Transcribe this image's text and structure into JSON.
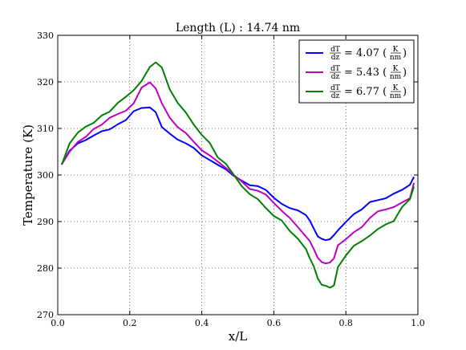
{
  "chart_data": {
    "type": "line",
    "title": "Length (L) : 14.74 nm",
    "xlabel": "x/L",
    "ylabel": "Temperature (K)",
    "xlim": [
      0.0,
      1.0
    ],
    "ylim": [
      270,
      330
    ],
    "xticks": [
      "0.0",
      "0.2",
      "0.4",
      "0.6",
      "0.8",
      "1.0"
    ],
    "yticks": [
      "270",
      "280",
      "290",
      "300",
      "310",
      "320",
      "330"
    ],
    "grid": true,
    "legend_position": "top-right",
    "x": [
      0.011,
      0.033,
      0.056,
      0.078,
      0.1,
      0.122,
      0.144,
      0.167,
      0.189,
      0.211,
      0.233,
      0.256,
      0.272,
      0.289,
      0.311,
      0.333,
      0.356,
      0.378,
      0.4,
      0.422,
      0.444,
      0.467,
      0.489,
      0.511,
      0.533,
      0.556,
      0.578,
      0.6,
      0.622,
      0.644,
      0.667,
      0.689,
      0.7,
      0.711,
      0.722,
      0.733,
      0.744,
      0.756,
      0.767,
      0.778,
      0.8,
      0.822,
      0.844,
      0.867,
      0.889,
      0.911,
      0.933,
      0.956,
      0.978,
      0.989
    ],
    "series": [
      {
        "name": "4.07",
        "color": "#0000ff",
        "values": [
          302.3,
          305.2,
          306.8,
          307.5,
          308.5,
          309.4,
          309.8,
          310.9,
          311.8,
          313.7,
          314.4,
          314.5,
          313.5,
          310.3,
          308.9,
          307.6,
          306.8,
          305.8,
          304.2,
          303.2,
          302.2,
          301.2,
          299.8,
          298.8,
          297.8,
          297.6,
          296.8,
          295.1,
          293.8,
          292.9,
          292.4,
          291.4,
          290.2,
          288.5,
          286.8,
          286.3,
          286.0,
          286.2,
          287.1,
          288.1,
          289.9,
          291.6,
          292.6,
          294.2,
          294.6,
          295.0,
          296.0,
          296.8,
          297.9,
          299.6
        ]
      },
      {
        "name": "5.43",
        "color": "#bf00bf",
        "values": [
          302.3,
          305.0,
          307.1,
          308.2,
          309.9,
          310.8,
          312.3,
          313.1,
          313.8,
          315.4,
          318.8,
          319.9,
          318.6,
          315.4,
          312.3,
          310.3,
          309.0,
          307.1,
          305.3,
          304.2,
          302.9,
          301.5,
          300.0,
          298.6,
          297.0,
          296.6,
          295.8,
          294.0,
          292.3,
          290.8,
          288.8,
          286.8,
          285.8,
          284.1,
          282.2,
          281.3,
          281.0,
          281.2,
          282.1,
          284.9,
          286.2,
          287.7,
          288.8,
          290.8,
          292.2,
          292.6,
          293.1,
          294.1,
          295.0,
          298.3
        ]
      },
      {
        "name": "6.77",
        "color": "#008000",
        "values": [
          302.2,
          306.8,
          309.1,
          310.4,
          311.2,
          312.8,
          313.6,
          315.5,
          316.8,
          318.2,
          320.2,
          323.2,
          324.2,
          323.1,
          318.4,
          315.5,
          313.4,
          310.8,
          308.6,
          306.9,
          303.8,
          302.4,
          300.0,
          297.6,
          295.9,
          294.8,
          292.9,
          291.2,
          290.2,
          288.0,
          286.3,
          284.1,
          282.1,
          280.4,
          277.8,
          276.4,
          276.2,
          275.8,
          276.3,
          280.2,
          282.7,
          284.8,
          285.8,
          287.0,
          288.4,
          289.4,
          290.1,
          293.1,
          294.8,
          297.5
        ]
      }
    ],
    "legend": [
      {
        "lhs_num": "dT",
        "lhs_den": "dz",
        "eq": "= 4.07 (",
        "unit_num": "K",
        "unit_den": "nm",
        "close": ")"
      },
      {
        "lhs_num": "dT",
        "lhs_den": "dz",
        "eq": "= 5.43 (",
        "unit_num": "K",
        "unit_den": "nm",
        "close": ")"
      },
      {
        "lhs_num": "dT",
        "lhs_den": "dz",
        "eq": "= 6.77 (",
        "unit_num": "K",
        "unit_den": "nm",
        "close": ")"
      }
    ]
  }
}
